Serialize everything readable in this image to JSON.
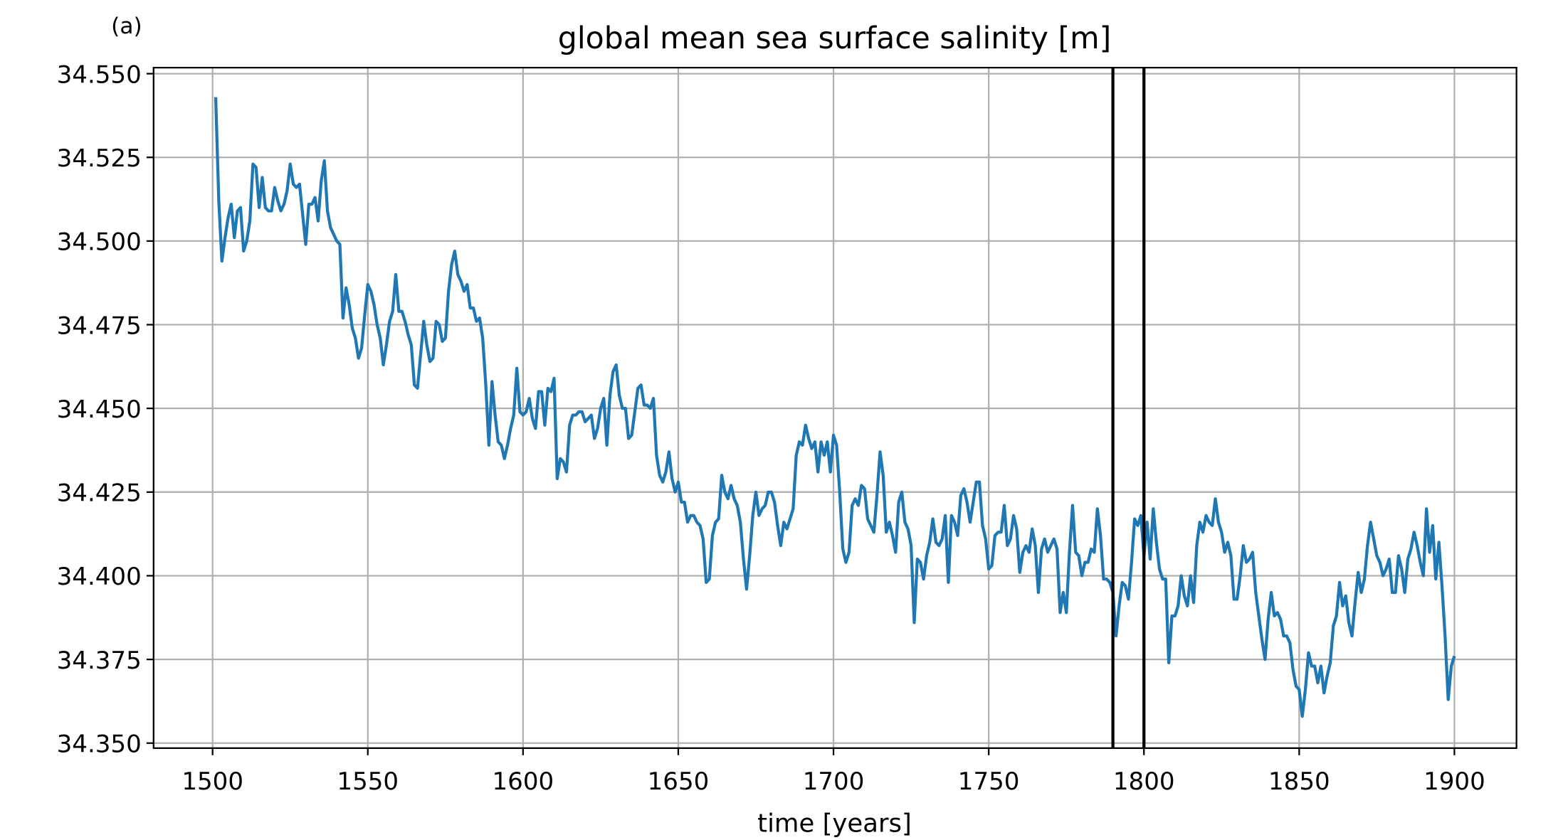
{
  "chart_data": {
    "type": "line",
    "panel_label": "(a)",
    "title": "global mean sea surface salinity [m]",
    "x_label": "time [years]",
    "color": "#1f77b4",
    "grid": true,
    "xlim": [
      1481,
      1920
    ],
    "ylim": [
      34.3485,
      34.5518
    ],
    "xticks": [
      1500,
      1550,
      1600,
      1650,
      1700,
      1750,
      1800,
      1850,
      1900
    ],
    "yticks": [
      {
        "value": 34.35,
        "label": "34.350"
      },
      34.375,
      {
        "value": 34.4,
        "label": "34.400"
      },
      34.425,
      {
        "value": 34.45,
        "label": "34.450"
      },
      34.475,
      {
        "value": 34.5,
        "label": "34.500"
      },
      34.525,
      {
        "value": 34.55,
        "label": "34.550"
      }
    ],
    "vlines": [
      1790,
      1800
    ],
    "vline_color": "#000000",
    "x": [
      1501,
      1502,
      1503,
      1504,
      1505,
      1506,
      1507,
      1508,
      1509,
      1510,
      1511,
      1512,
      1513,
      1514,
      1515,
      1516,
      1517,
      1518,
      1519,
      1520,
      1521,
      1522,
      1523,
      1524,
      1525,
      1526,
      1527,
      1528,
      1529,
      1530,
      1531,
      1532,
      1533,
      1534,
      1535,
      1536,
      1537,
      1538,
      1539,
      1540,
      1541,
      1542,
      1543,
      1544,
      1545,
      1546,
      1547,
      1548,
      1549,
      1550,
      1551,
      1552,
      1553,
      1554,
      1555,
      1556,
      1557,
      1558,
      1559,
      1560,
      1561,
      1562,
      1563,
      1564,
      1565,
      1566,
      1567,
      1568,
      1569,
      1570,
      1571,
      1572,
      1573,
      1574,
      1575,
      1576,
      1577,
      1578,
      1579,
      1580,
      1581,
      1582,
      1583,
      1584,
      1585,
      1586,
      1587,
      1588,
      1589,
      1590,
      1591,
      1592,
      1593,
      1594,
      1595,
      1596,
      1597,
      1598,
      1599,
      1600,
      1601,
      1602,
      1603,
      1604,
      1605,
      1606,
      1607,
      1608,
      1609,
      1610,
      1611,
      1612,
      1613,
      1614,
      1615,
      1616,
      1617,
      1618,
      1619,
      1620,
      1621,
      1622,
      1623,
      1624,
      1625,
      1626,
      1627,
      1628,
      1629,
      1630,
      1631,
      1632,
      1633,
      1634,
      1635,
      1636,
      1637,
      1638,
      1639,
      1640,
      1641,
      1642,
      1643,
      1644,
      1645,
      1646,
      1647,
      1648,
      1649,
      1650,
      1651,
      1652,
      1653,
      1654,
      1655,
      1656,
      1657,
      1658,
      1659,
      1660,
      1661,
      1662,
      1663,
      1664,
      1665,
      1666,
      1667,
      1668,
      1669,
      1670,
      1671,
      1672,
      1673,
      1674,
      1675,
      1676,
      1677,
      1678,
      1679,
      1680,
      1681,
      1682,
      1683,
      1684,
      1685,
      1686,
      1687,
      1688,
      1689,
      1690,
      1691,
      1692,
      1693,
      1694,
      1695,
      1696,
      1697,
      1698,
      1699,
      1700,
      1701,
      1702,
      1703,
      1704,
      1705,
      1706,
      1707,
      1708,
      1709,
      1710,
      1711,
      1712,
      1713,
      1714,
      1715,
      1716,
      1717,
      1718,
      1719,
      1720,
      1721,
      1722,
      1723,
      1724,
      1725,
      1726,
      1727,
      1728,
      1729,
      1730,
      1731,
      1732,
      1733,
      1734,
      1735,
      1736,
      1737,
      1738,
      1739,
      1740,
      1741,
      1742,
      1743,
      1744,
      1745,
      1746,
      1747,
      1748,
      1749,
      1750,
      1751,
      1752,
      1753,
      1754,
      1755,
      1756,
      1757,
      1758,
      1759,
      1760,
      1761,
      1762,
      1763,
      1764,
      1765,
      1766,
      1767,
      1768,
      1769,
      1770,
      1771,
      1772,
      1773,
      1774,
      1775,
      1776,
      1777,
      1778,
      1779,
      1780,
      1781,
      1782,
      1783,
      1784,
      1785,
      1786,
      1787,
      1788,
      1789,
      1790,
      1791,
      1792,
      1793,
      1794,
      1795,
      1796,
      1797,
      1798,
      1799,
      1800,
      1801,
      1802,
      1803,
      1804,
      1805,
      1806,
      1807,
      1808,
      1809,
      1810,
      1811,
      1812,
      1813,
      1814,
      1815,
      1816,
      1817,
      1818,
      1819,
      1820,
      1821,
      1822,
      1823,
      1824,
      1825,
      1826,
      1827,
      1828,
      1829,
      1830,
      1831,
      1832,
      1833,
      1834,
      1835,
      1836,
      1837,
      1838,
      1839,
      1840,
      1841,
      1842,
      1843,
      1844,
      1845,
      1846,
      1847,
      1848,
      1849,
      1850,
      1851,
      1852,
      1853,
      1854,
      1855,
      1856,
      1857,
      1858,
      1859,
      1860,
      1861,
      1862,
      1863,
      1864,
      1865,
      1866,
      1867,
      1868,
      1869,
      1870,
      1871,
      1872,
      1873,
      1874,
      1875,
      1876,
      1877,
      1878,
      1879,
      1880,
      1881,
      1882,
      1883,
      1884,
      1885,
      1886,
      1887,
      1888,
      1889,
      1890,
      1891,
      1892,
      1893,
      1894,
      1895,
      1896,
      1897,
      1898,
      1899,
      1900
    ],
    "values": [
      34.543,
      34.512,
      34.494,
      34.501,
      34.507,
      34.511,
      34.501,
      34.509,
      34.51,
      34.497,
      34.5,
      34.506,
      34.523,
      34.522,
      34.51,
      34.519,
      34.51,
      34.509,
      34.509,
      34.516,
      34.512,
      34.509,
      34.511,
      34.515,
      34.523,
      34.517,
      34.516,
      34.517,
      34.508,
      34.499,
      34.511,
      34.511,
      34.513,
      34.506,
      34.518,
      34.524,
      34.509,
      34.504,
      34.502,
      34.5,
      34.499,
      34.477,
      34.486,
      34.481,
      34.474,
      34.471,
      34.465,
      34.468,
      34.478,
      34.487,
      34.485,
      34.481,
      34.475,
      34.471,
      34.463,
      34.469,
      34.476,
      34.479,
      34.49,
      34.479,
      34.479,
      34.476,
      34.472,
      34.469,
      34.457,
      34.456,
      34.466,
      34.476,
      34.469,
      34.464,
      34.465,
      34.476,
      34.475,
      34.47,
      34.471,
      34.485,
      34.493,
      34.497,
      34.49,
      34.488,
      34.485,
      34.487,
      34.48,
      34.48,
      34.476,
      34.477,
      34.471,
      34.457,
      34.439,
      34.458,
      34.448,
      34.44,
      34.439,
      34.435,
      34.439,
      34.444,
      34.448,
      34.462,
      34.449,
      34.448,
      34.449,
      34.453,
      34.447,
      34.444,
      34.455,
      34.455,
      34.445,
      34.456,
      34.455,
      34.459,
      34.429,
      34.435,
      34.434,
      34.431,
      34.445,
      34.448,
      34.448,
      34.449,
      34.449,
      34.446,
      34.447,
      34.448,
      34.441,
      34.444,
      34.45,
      34.453,
      34.439,
      34.454,
      34.461,
      34.463,
      34.454,
      34.45,
      34.45,
      34.441,
      34.442,
      34.449,
      34.456,
      34.457,
      34.451,
      34.451,
      34.45,
      34.453,
      34.436,
      34.43,
      34.428,
      34.431,
      34.437,
      34.429,
      34.425,
      34.428,
      34.422,
      34.422,
      34.416,
      34.418,
      34.418,
      34.416,
      34.415,
      34.411,
      34.398,
      34.399,
      34.412,
      34.416,
      34.417,
      34.43,
      34.425,
      34.423,
      34.427,
      34.423,
      34.421,
      34.416,
      34.405,
      34.396,
      34.406,
      34.418,
      34.425,
      34.418,
      34.42,
      34.421,
      34.425,
      34.425,
      34.422,
      34.415,
      34.409,
      34.416,
      34.414,
      34.417,
      34.42,
      34.436,
      34.44,
      34.439,
      34.445,
      34.441,
      34.438,
      34.44,
      34.431,
      34.44,
      34.436,
      34.44,
      34.431,
      34.442,
      34.439,
      34.425,
      34.408,
      34.404,
      34.407,
      34.421,
      34.423,
      34.421,
      34.427,
      34.426,
      34.417,
      34.415,
      34.413,
      34.424,
      34.437,
      34.43,
      34.413,
      34.416,
      34.412,
      34.407,
      34.422,
      34.425,
      34.416,
      34.414,
      34.409,
      34.386,
      34.405,
      34.404,
      34.399,
      34.406,
      34.41,
      34.417,
      34.41,
      34.409,
      34.411,
      34.418,
      34.398,
      34.418,
      34.416,
      34.412,
      34.424,
      34.426,
      34.422,
      34.416,
      34.422,
      34.428,
      34.428,
      34.415,
      34.411,
      34.402,
      34.403,
      34.412,
      34.413,
      34.413,
      34.421,
      34.409,
      34.411,
      34.418,
      34.414,
      34.401,
      34.407,
      34.409,
      34.407,
      34.414,
      34.409,
      34.395,
      34.408,
      34.411,
      34.407,
      34.409,
      34.411,
      34.408,
      34.389,
      34.395,
      34.389,
      34.407,
      34.421,
      34.407,
      34.406,
      34.4,
      34.404,
      34.404,
      34.408,
      34.407,
      34.42,
      34.412,
      34.399,
      34.399,
      34.398,
      34.395,
      34.382,
      34.391,
      34.398,
      34.397,
      34.393,
      34.404,
      34.417,
      34.415,
      34.418,
      34.406,
      34.416,
      34.405,
      34.42,
      34.41,
      34.402,
      34.399,
      34.399,
      34.374,
      34.388,
      34.388,
      34.391,
      34.4,
      34.394,
      34.391,
      34.4,
      34.392,
      34.409,
      34.416,
      34.413,
      34.418,
      34.416,
      34.415,
      34.423,
      34.416,
      34.413,
      34.407,
      34.41,
      34.406,
      34.393,
      34.393,
      34.4,
      34.409,
      34.404,
      34.405,
      34.407,
      34.395,
      34.388,
      34.381,
      34.375,
      34.387,
      34.395,
      34.388,
      34.389,
      34.387,
      34.382,
      34.382,
      34.38,
      34.372,
      34.367,
      34.366,
      34.358,
      34.366,
      34.377,
      34.373,
      34.373,
      34.368,
      34.373,
      34.365,
      34.37,
      34.374,
      34.385,
      34.388,
      34.398,
      34.391,
      34.394,
      34.386,
      34.382,
      34.392,
      34.401,
      34.395,
      34.399,
      34.409,
      34.416,
      34.411,
      34.406,
      34.404,
      34.4,
      34.402,
      34.405,
      34.395,
      34.395,
      34.406,
      34.402,
      34.395,
      34.405,
      34.408,
      34.413,
      34.409,
      34.404,
      34.4,
      34.42,
      34.407,
      34.415,
      34.399,
      34.41,
      34.397,
      34.382,
      34.363,
      34.373,
      34.376
    ]
  }
}
